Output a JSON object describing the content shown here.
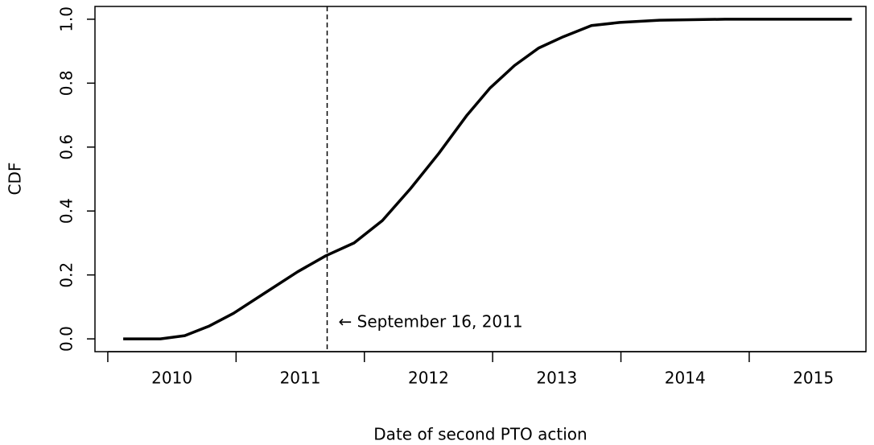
{
  "chart_data": {
    "type": "line",
    "xlabel": "Date of second PTO action",
    "ylabel": "CDF",
    "x": [
      2010.12,
      2010.41,
      2010.6,
      2010.79,
      2010.98,
      2011.23,
      2011.48,
      2011.7,
      2011.92,
      2012.14,
      2012.36,
      2012.58,
      2012.8,
      2012.98,
      2013.17,
      2013.36,
      2013.55,
      2013.77,
      2013.99,
      2014.3,
      2014.81,
      2015.8
    ],
    "series": [
      {
        "color": "#000000",
        "values": [
          0.0,
          0.0,
          0.01,
          0.04,
          0.08,
          0.145,
          0.21,
          0.26,
          0.3,
          0.37,
          0.47,
          0.58,
          0.7,
          0.785,
          0.855,
          0.91,
          0.945,
          0.98,
          0.99,
          0.997,
          1.0,
          1.0
        ]
      }
    ],
    "xlim": [
      2009.9,
      2015.91
    ],
    "ylim": [
      -0.04,
      1.04
    ],
    "xticks": [
      2010,
      2011,
      2012,
      2013,
      2014,
      2015
    ],
    "xtick_label_position": "between",
    "yticks": [
      {
        "value": 0,
        "label": "0.0"
      },
      0.2,
      0.4,
      0.6,
      0.8,
      {
        "value": 1,
        "label": "1.0"
      }
    ],
    "annotations": [
      {
        "x": 2011.71,
        "text": "← September 16, 2011",
        "style": "dashed"
      }
    ]
  }
}
